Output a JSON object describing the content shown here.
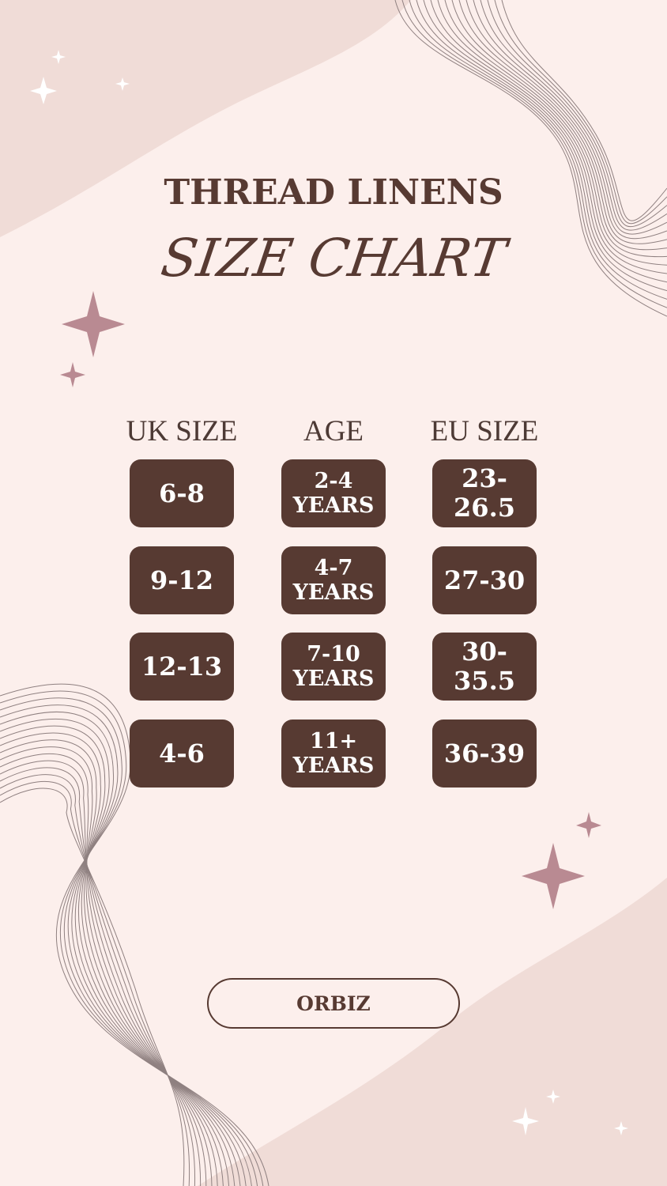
{
  "header": {
    "title": "THREAD LINENS",
    "subtitle": "SIZE CHART"
  },
  "table": {
    "columns": [
      "UK SIZE",
      "AGE",
      "EU SIZE"
    ],
    "rows": [
      {
        "uk": "6-8",
        "age_num": "2-4",
        "age_unit": "YEARS",
        "eu": "23-26.5"
      },
      {
        "uk": "9-12",
        "age_num": "4-7",
        "age_unit": "YEARS",
        "eu": "27-30"
      },
      {
        "uk": "12-13",
        "age_num": "7-10",
        "age_unit": "YEARS",
        "eu": "30-35.5"
      },
      {
        "uk": "4-6",
        "age_num": "11+",
        "age_unit": "YEARS",
        "eu": "36-39"
      }
    ]
  },
  "footer": {
    "brand_label": "ORBIZ"
  },
  "colors": {
    "background": "#fcefec",
    "blob": "#f0dcd7",
    "brown": "#573a32",
    "sparkle": "#b98a92"
  },
  "icons": [
    "sparkle-icon"
  ]
}
